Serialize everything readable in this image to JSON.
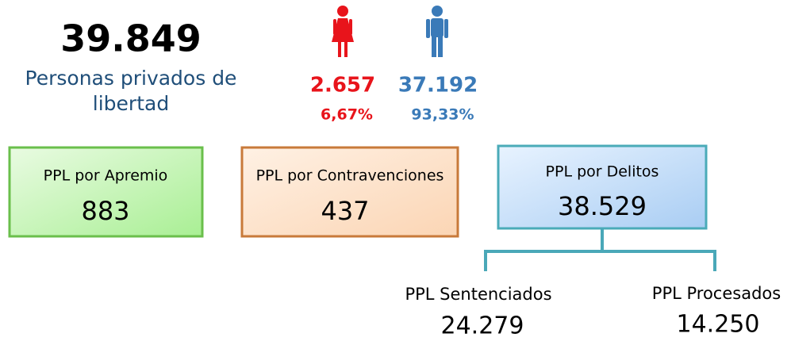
{
  "total": {
    "value": "39.849",
    "label_lines": [
      "Personas privados de",
      "libertad"
    ]
  },
  "female": {
    "value": "2.657",
    "percent": "6,67%"
  },
  "male": {
    "value": "37.192",
    "percent": "93,33%"
  },
  "boxes": [
    {
      "label": "PPL por Apremio",
      "value": "883"
    },
    {
      "label": "PPL por Contravenciones",
      "value": "437"
    },
    {
      "label": "PPL por Delitos",
      "value": "38.529"
    }
  ],
  "delitos_breakdown": [
    {
      "label": "PPL Sentenciados",
      "value": "24.279"
    },
    {
      "label": "PPL Procesados",
      "value": "14.250"
    }
  ]
}
